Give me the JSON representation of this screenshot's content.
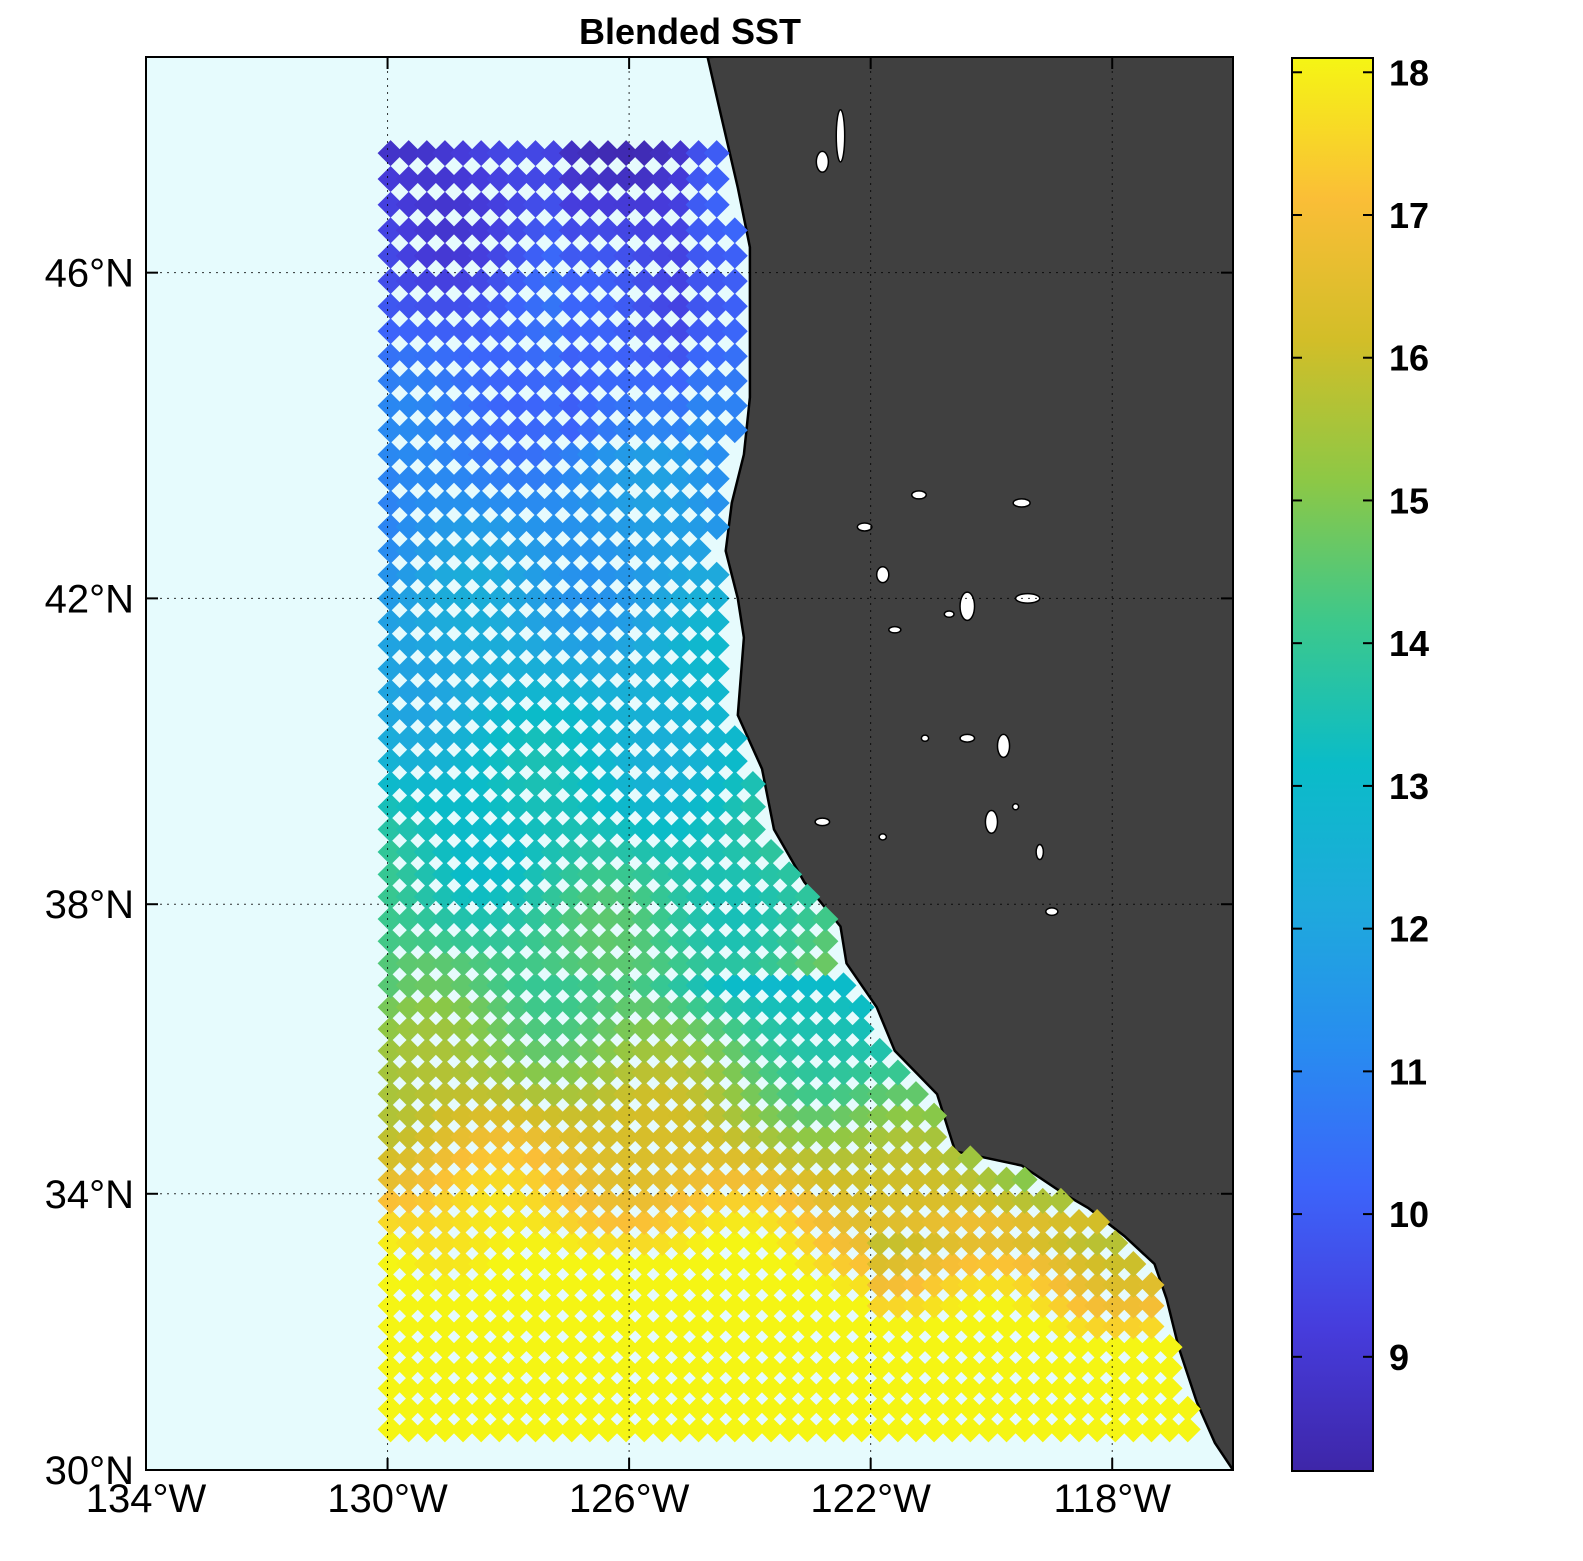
{
  "chart_data": {
    "type": "scatter",
    "title": "Blended SST",
    "projection": "mercator",
    "lon_range": [
      -134,
      -116
    ],
    "lat_range": [
      30,
      48.5
    ],
    "grid": true,
    "lon_ticks": [
      {
        "value": -134,
        "label": "134°W"
      },
      {
        "value": -130,
        "label": "130°W"
      },
      {
        "value": -126,
        "label": "126°W"
      },
      {
        "value": -122,
        "label": "122°W"
      },
      {
        "value": -118,
        "label": "118°W"
      }
    ],
    "lat_ticks": [
      {
        "value": 30,
        "label": "30°N"
      },
      {
        "value": 34,
        "label": "34°N"
      },
      {
        "value": 38,
        "label": "38°N"
      },
      {
        "value": 42,
        "label": "42°N"
      },
      {
        "value": 46,
        "label": "46°N"
      }
    ],
    "colorbar": {
      "range": [
        8.2,
        18.1
      ],
      "ticks": [
        9,
        10,
        11,
        12,
        13,
        14,
        15,
        16,
        17,
        18
      ],
      "colormap": "parula",
      "placement": "right"
    },
    "marker": "diamond",
    "grid_spacing_deg": 0.3,
    "ocean_color": "#e6fbfd",
    "land_color": "#404040",
    "coastline": [
      [
        -124.7,
        48.5
      ],
      [
        -124.5,
        47.9
      ],
      [
        -124.2,
        47.0
      ],
      [
        -124.0,
        46.3
      ],
      [
        -124.0,
        45.5
      ],
      [
        -124.0,
        44.5
      ],
      [
        -124.1,
        43.8
      ],
      [
        -124.3,
        43.2
      ],
      [
        -124.4,
        42.6
      ],
      [
        -124.2,
        42.0
      ],
      [
        -124.1,
        41.5
      ],
      [
        -124.2,
        40.5
      ],
      [
        -123.8,
        39.8
      ],
      [
        -123.6,
        39.0
      ],
      [
        -123.1,
        38.3
      ],
      [
        -122.5,
        37.7
      ],
      [
        -122.4,
        37.2
      ],
      [
        -121.9,
        36.6
      ],
      [
        -121.6,
        36.0
      ],
      [
        -120.9,
        35.4
      ],
      [
        -120.6,
        34.6
      ],
      [
        -119.5,
        34.4
      ],
      [
        -118.8,
        34.0
      ],
      [
        -118.4,
        33.8
      ],
      [
        -117.8,
        33.4
      ],
      [
        -117.3,
        33.0
      ],
      [
        -117.1,
        32.5
      ],
      [
        -116.9,
        31.8
      ],
      [
        -116.6,
        31.0
      ],
      [
        -116.3,
        30.4
      ],
      [
        -116.0,
        30.0
      ]
    ],
    "lakes": [
      [
        -121.2,
        43.3,
        0.12,
        0.05
      ],
      [
        -122.1,
        42.9,
        0.12,
        0.05
      ],
      [
        -121.8,
        42.3,
        0.1,
        0.1
      ],
      [
        -120.4,
        41.9,
        0.12,
        0.18
      ],
      [
        -120.7,
        41.8,
        0.08,
        0.04
      ],
      [
        -119.8,
        40.1,
        0.1,
        0.15
      ],
      [
        -120.4,
        40.2,
        0.12,
        0.05
      ],
      [
        -121.1,
        40.2,
        0.06,
        0.04
      ],
      [
        -120.0,
        39.1,
        0.1,
        0.15
      ],
      [
        -122.8,
        39.1,
        0.12,
        0.05
      ],
      [
        -121.8,
        38.9,
        0.06,
        0.04
      ],
      [
        -119.4,
        42.0,
        0.2,
        0.06
      ],
      [
        -119.5,
        43.2,
        0.14,
        0.05
      ],
      [
        -121.6,
        41.6,
        0.1,
        0.04
      ],
      [
        -119.0,
        37.9,
        0.1,
        0.05
      ],
      [
        -119.2,
        38.7,
        0.06,
        0.1
      ],
      [
        -119.6,
        39.3,
        0.05,
        0.04
      ],
      [
        -122.5,
        47.6,
        0.07,
        0.3
      ],
      [
        -122.8,
        47.3,
        0.1,
        0.12
      ]
    ]
  }
}
